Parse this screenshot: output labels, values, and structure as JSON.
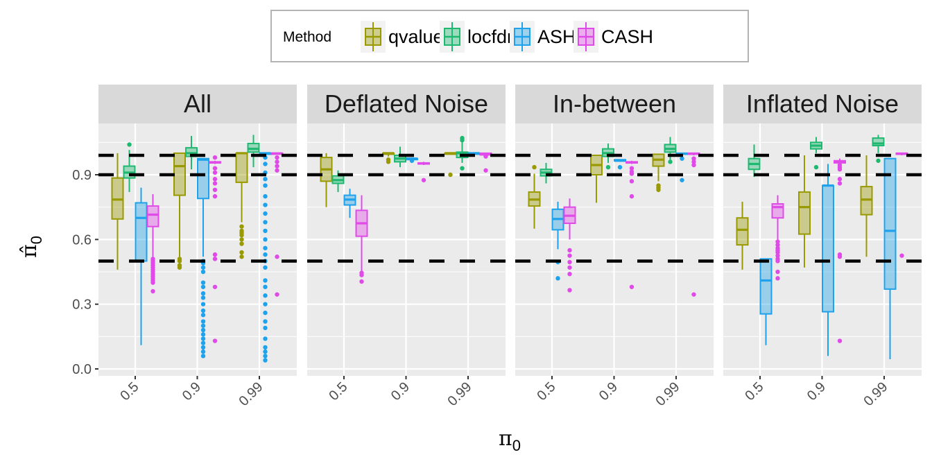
{
  "chart_data": {
    "type": "boxplot",
    "title": "",
    "xlabel": "π0",
    "ylabel": "π̂0",
    "ylim": [
      -0.005,
      1.1
    ],
    "yticks": [
      "0.0",
      "0.3",
      "0.6",
      "0.9"
    ],
    "ytick_values": [
      0.0,
      0.3,
      0.6,
      0.9
    ],
    "categories": [
      "0.5",
      "0.9",
      "0.99"
    ],
    "reference_lines": [
      0.5,
      0.9,
      0.99
    ],
    "grid": true,
    "legend": {
      "title": "Method",
      "position": "top",
      "entries": [
        {
          "name": "qvalue",
          "color": "#999900"
        },
        {
          "name": "locfdr",
          "color": "#1fb870"
        },
        {
          "name": "ASH",
          "color": "#1ea2eb"
        },
        {
          "name": "CASH",
          "color": "#e04ae8"
        }
      ]
    },
    "panels": [
      {
        "name": "All",
        "boxes": [
          {
            "cat": "0.5",
            "method": "qvalue",
            "lo": 0.46,
            "q1": 0.695,
            "med": 0.785,
            "q3": 0.885,
            "hi": 1.0,
            "out": []
          },
          {
            "cat": "0.5",
            "method": "locfdr",
            "lo": 0.82,
            "q1": 0.885,
            "med": 0.91,
            "q3": 0.94,
            "hi": 1.015,
            "out": [
              1.04
            ]
          },
          {
            "cat": "0.5",
            "method": "ASH",
            "lo": 0.11,
            "q1": 0.5,
            "med": 0.7,
            "q3": 0.77,
            "hi": 0.84,
            "out": []
          },
          {
            "cat": "0.5",
            "method": "CASH",
            "lo": 0.52,
            "q1": 0.66,
            "med": 0.715,
            "q3": 0.755,
            "hi": 0.81,
            "out": [
              0.36,
              0.4,
              0.41,
              0.42,
              0.43,
              0.44,
              0.45,
              0.46,
              0.47,
              0.48,
              0.49,
              0.5,
              0.51
            ]
          },
          {
            "cat": "0.9",
            "method": "qvalue",
            "lo": 0.52,
            "q1": 0.805,
            "med": 0.94,
            "q3": 1.0,
            "hi": 1.0,
            "out": [
              0.47,
              0.48,
              0.5,
              0.51
            ]
          },
          {
            "cat": "0.9",
            "method": "locfdr",
            "lo": 0.925,
            "q1": 0.985,
            "med": 1.0,
            "q3": 1.025,
            "hi": 1.08,
            "out": []
          },
          {
            "cat": "0.9",
            "method": "ASH",
            "lo": 0.52,
            "q1": 0.79,
            "med": 0.97,
            "q3": 0.975,
            "hi": 0.975,
            "out": [
              0.06,
              0.08,
              0.1,
              0.12,
              0.14,
              0.16,
              0.18,
              0.2,
              0.22,
              0.25,
              0.27,
              0.3,
              0.33,
              0.35,
              0.38,
              0.4,
              0.45,
              0.47,
              0.49,
              0.5
            ]
          },
          {
            "cat": "0.9",
            "method": "CASH",
            "lo": 0.95,
            "q1": 0.955,
            "med": 0.957,
            "q3": 0.96,
            "hi": 0.965,
            "out": [
              0.13,
              0.38,
              0.51,
              0.53,
              0.8,
              0.83,
              0.86,
              0.88,
              0.91,
              0.93,
              0.98
            ]
          },
          {
            "cat": "0.99",
            "method": "qvalue",
            "lo": 0.68,
            "q1": 0.865,
            "med": 1.0,
            "q3": 1.0,
            "hi": 1.0,
            "out": [
              0.52,
              0.54,
              0.58,
              0.6,
              0.62,
              0.63,
              0.64,
              0.66
            ]
          },
          {
            "cat": "0.99",
            "method": "locfdr",
            "lo": 0.935,
            "q1": 1.005,
            "med": 1.02,
            "q3": 1.045,
            "hi": 1.085,
            "out": []
          },
          {
            "cat": "0.99",
            "method": "ASH",
            "lo": 0.99,
            "q1": 0.995,
            "med": 1.0,
            "q3": 1.0,
            "hi": 1.0,
            "out": [
              0.04,
              0.06,
              0.08,
              0.1,
              0.14,
              0.19,
              0.22,
              0.26,
              0.3,
              0.34,
              0.38,
              0.41,
              0.47,
              0.5,
              0.53,
              0.56,
              0.6,
              0.64,
              0.68,
              0.72,
              0.76,
              0.8,
              0.85,
              0.88,
              0.91,
              0.95,
              0.98
            ]
          },
          {
            "cat": "0.99",
            "method": "CASH",
            "lo": 0.995,
            "q1": 0.997,
            "med": 0.999,
            "q3": 1.0,
            "hi": 1.0,
            "out": [
              0.345,
              0.52,
              0.92,
              0.94,
              0.96,
              0.98
            ]
          }
        ]
      },
      {
        "name": "Deflated Noise",
        "boxes": [
          {
            "cat": "0.5",
            "method": "qvalue",
            "lo": 0.75,
            "q1": 0.87,
            "med": 0.925,
            "q3": 0.98,
            "hi": 1.0,
            "out": []
          },
          {
            "cat": "0.5",
            "method": "locfdr",
            "lo": 0.82,
            "q1": 0.86,
            "med": 0.875,
            "q3": 0.895,
            "hi": 0.92,
            "out": []
          },
          {
            "cat": "0.5",
            "method": "ASH",
            "lo": 0.7,
            "q1": 0.76,
            "med": 0.785,
            "q3": 0.805,
            "hi": 0.835,
            "out": []
          },
          {
            "cat": "0.5",
            "method": "CASH",
            "lo": 0.45,
            "q1": 0.615,
            "med": 0.675,
            "q3": 0.735,
            "hi": 0.805,
            "out": [
              0.405,
              0.435,
              0.445
            ]
          },
          {
            "cat": "0.9",
            "method": "qvalue",
            "lo": 0.985,
            "q1": 0.995,
            "med": 1.0,
            "q3": 1.0,
            "hi": 1.0,
            "out": [
              0.96,
              0.97
            ]
          },
          {
            "cat": "0.9",
            "method": "locfdr",
            "lo": 0.935,
            "q1": 0.96,
            "med": 0.975,
            "q3": 0.99,
            "hi": 1.03,
            "out": []
          },
          {
            "cat": "0.9",
            "method": "ASH",
            "lo": 0.97,
            "q1": 0.975,
            "med": 0.975,
            "q3": 0.975,
            "hi": 0.975,
            "out": [
              0.965
            ]
          },
          {
            "cat": "0.9",
            "method": "CASH",
            "lo": 0.945,
            "q1": 0.95,
            "med": 0.952,
            "q3": 0.955,
            "hi": 0.96,
            "out": [
              0.875
            ]
          },
          {
            "cat": "0.99",
            "method": "qvalue",
            "lo": 1.0,
            "q1": 1.0,
            "med": 1.0,
            "q3": 1.0,
            "hi": 1.0,
            "out": [
              0.9
            ]
          },
          {
            "cat": "0.99",
            "method": "locfdr",
            "lo": 0.955,
            "q1": 0.98,
            "med": 1.0,
            "q3": 1.005,
            "hi": 1.05,
            "out": [
              0.93,
              1.06,
              1.07
            ]
          },
          {
            "cat": "0.99",
            "method": "ASH",
            "lo": 0.995,
            "q1": 0.998,
            "med": 1.0,
            "q3": 1.0,
            "hi": 1.0,
            "out": []
          },
          {
            "cat": "0.99",
            "method": "CASH",
            "lo": 0.99,
            "q1": 0.992,
            "med": 0.995,
            "q3": 1.0,
            "hi": 1.0,
            "out": [
              0.92,
              0.985
            ]
          }
        ]
      },
      {
        "name": "In-between",
        "boxes": [
          {
            "cat": "0.5",
            "method": "qvalue",
            "lo": 0.65,
            "q1": 0.755,
            "med": 0.785,
            "q3": 0.82,
            "hi": 0.905,
            "out": [
              0.935
            ]
          },
          {
            "cat": "0.5",
            "method": "locfdr",
            "lo": 0.86,
            "q1": 0.895,
            "med": 0.91,
            "q3": 0.925,
            "hi": 0.955,
            "out": []
          },
          {
            "cat": "0.5",
            "method": "ASH",
            "lo": 0.555,
            "q1": 0.645,
            "med": 0.695,
            "q3": 0.74,
            "hi": 0.775,
            "out": [
              0.42,
              0.495
            ]
          },
          {
            "cat": "0.5",
            "method": "CASH",
            "lo": 0.6,
            "q1": 0.675,
            "med": 0.71,
            "q3": 0.75,
            "hi": 0.79,
            "out": [
              0.365,
              0.44,
              0.47,
              0.495,
              0.525,
              0.55
            ]
          },
          {
            "cat": "0.9",
            "method": "qvalue",
            "lo": 0.77,
            "q1": 0.9,
            "med": 0.945,
            "q3": 0.99,
            "hi": 0.99,
            "out": []
          },
          {
            "cat": "0.9",
            "method": "locfdr",
            "lo": 0.955,
            "q1": 0.985,
            "med": 1.0,
            "q3": 1.02,
            "hi": 1.045,
            "out": [
              0.935
            ]
          },
          {
            "cat": "0.9",
            "method": "ASH",
            "lo": 0.96,
            "q1": 0.965,
            "med": 0.965,
            "q3": 0.97,
            "hi": 0.97,
            "out": [
              0.935
            ]
          },
          {
            "cat": "0.9",
            "method": "CASH",
            "lo": 0.95,
            "q1": 0.955,
            "med": 0.957,
            "q3": 0.96,
            "hi": 0.965,
            "out": [
              0.38,
              0.8,
              0.87,
              0.905,
              0.915,
              0.93
            ]
          },
          {
            "cat": "0.99",
            "method": "qvalue",
            "lo": 0.87,
            "q1": 0.94,
            "med": 0.97,
            "q3": 0.995,
            "hi": 0.995,
            "out": [
              0.83,
              0.84,
              0.85
            ]
          },
          {
            "cat": "0.99",
            "method": "locfdr",
            "lo": 0.97,
            "q1": 1.005,
            "med": 1.02,
            "q3": 1.04,
            "hi": 1.075,
            "out": [
              0.96
            ]
          },
          {
            "cat": "0.99",
            "method": "ASH",
            "lo": 0.99,
            "q1": 0.995,
            "med": 0.998,
            "q3": 1.0,
            "hi": 1.0,
            "out": [
              0.875,
              0.975
            ]
          },
          {
            "cat": "0.99",
            "method": "CASH",
            "lo": 0.99,
            "q1": 0.995,
            "med": 0.998,
            "q3": 1.0,
            "hi": 1.0,
            "out": [
              0.345,
              0.945,
              0.96,
              0.975
            ]
          }
        ]
      },
      {
        "name": "Inflated Noise",
        "boxes": [
          {
            "cat": "0.5",
            "method": "qvalue",
            "lo": 0.46,
            "q1": 0.575,
            "med": 0.645,
            "q3": 0.7,
            "hi": 0.775,
            "out": []
          },
          {
            "cat": "0.5",
            "method": "locfdr",
            "lo": 0.89,
            "q1": 0.925,
            "med": 0.95,
            "q3": 0.975,
            "hi": 1.04,
            "out": []
          },
          {
            "cat": "0.5",
            "method": "ASH",
            "lo": 0.11,
            "q1": 0.255,
            "med": 0.41,
            "q3": 0.51,
            "hi": 0.51,
            "out": []
          },
          {
            "cat": "0.5",
            "method": "CASH",
            "lo": 0.6,
            "q1": 0.7,
            "med": 0.75,
            "q3": 0.765,
            "hi": 0.805,
            "out": [
              0.42,
              0.45,
              0.5,
              0.51,
              0.525,
              0.54,
              0.55,
              0.56,
              0.575,
              0.59
            ]
          },
          {
            "cat": "0.9",
            "method": "qvalue",
            "lo": 0.47,
            "q1": 0.625,
            "med": 0.75,
            "q3": 0.82,
            "hi": 0.99,
            "out": []
          },
          {
            "cat": "0.9",
            "method": "locfdr",
            "lo": 1.0,
            "q1": 1.02,
            "med": 1.035,
            "q3": 1.05,
            "hi": 1.075,
            "out": [
              0.935
            ]
          },
          {
            "cat": "0.9",
            "method": "ASH",
            "lo": 0.06,
            "q1": 0.265,
            "med": 0.85,
            "q3": 0.85,
            "hi": 0.95,
            "out": []
          },
          {
            "cat": "0.9",
            "method": "CASH",
            "lo": 0.95,
            "q1": 0.955,
            "med": 0.96,
            "q3": 0.965,
            "hi": 0.975,
            "out": [
              0.13,
              0.52,
              0.53,
              0.86,
              0.88,
              0.925,
              0.935,
              0.945
            ]
          },
          {
            "cat": "0.99",
            "method": "qvalue",
            "lo": 0.52,
            "q1": 0.715,
            "med": 0.785,
            "q3": 0.845,
            "hi": 0.99,
            "out": []
          },
          {
            "cat": "0.99",
            "method": "locfdr",
            "lo": 1.0,
            "q1": 1.035,
            "med": 1.045,
            "q3": 1.07,
            "hi": 1.085,
            "out": [
              0.965
            ]
          },
          {
            "cat": "0.99",
            "method": "ASH",
            "lo": 0.045,
            "q1": 0.37,
            "med": 0.64,
            "q3": 0.975,
            "hi": 0.975,
            "out": []
          },
          {
            "cat": "0.99",
            "method": "CASH",
            "lo": 0.99,
            "q1": 0.995,
            "med": 0.998,
            "q3": 1.0,
            "hi": 1.0,
            "out": [
              0.525
            ]
          }
        ]
      }
    ]
  }
}
